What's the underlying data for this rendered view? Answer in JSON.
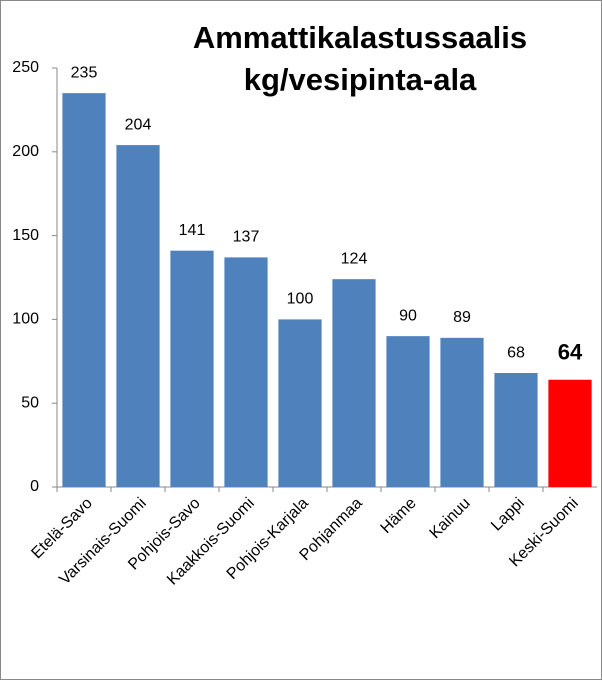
{
  "chart_data": {
    "type": "bar",
    "title": [
      "Ammattikalastussaalis",
      "kg/vesipinta-ala"
    ],
    "categories": [
      "Etelä-Savo",
      "Varsinais-Suomi",
      "Pohjois-Savo",
      "Kaakkois-Suomi",
      "Pohjois-Karjala",
      "Pohjanmaa",
      "Häme",
      "Kainuu",
      "Lappi",
      "Keski-Suomi"
    ],
    "values": [
      235,
      204,
      141,
      137,
      100,
      124,
      90,
      89,
      68,
      64
    ],
    "colors": [
      "#4f81bd",
      "#4f81bd",
      "#4f81bd",
      "#4f81bd",
      "#4f81bd",
      "#4f81bd",
      "#4f81bd",
      "#4f81bd",
      "#4f81bd",
      "#ff0000"
    ],
    "ylim": [
      0,
      250
    ],
    "yticks": [
      0,
      50,
      100,
      150,
      200,
      250
    ],
    "grid": false
  }
}
